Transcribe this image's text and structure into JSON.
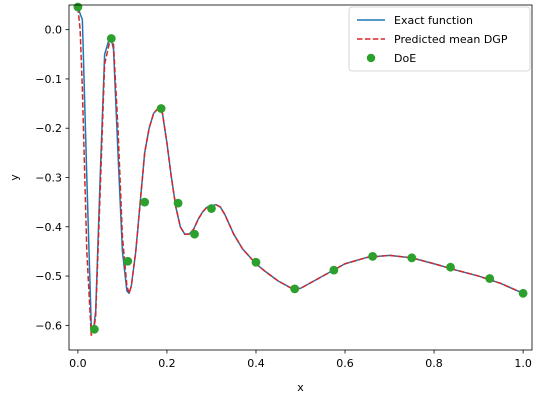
{
  "chart_data": {
    "type": "line",
    "xlabel": "x",
    "ylabel": "y",
    "xlim": [
      -0.02,
      1.02
    ],
    "ylim": [
      -0.65,
      0.05
    ],
    "xticks": [
      0.0,
      0.2,
      0.4,
      0.6,
      0.8,
      1.0
    ],
    "xtick_labels": [
      "0.0",
      "0.2",
      "0.4",
      "0.6",
      "0.8",
      "1.0"
    ],
    "yticks": [
      0.0,
      -0.1,
      -0.2,
      -0.3,
      -0.4,
      -0.5,
      -0.6
    ],
    "ytick_labels": [
      "0.0",
      "−0.1",
      "−0.2",
      "−0.3",
      "−0.4",
      "−0.5",
      "−0.6"
    ],
    "grid": false,
    "legend_position": "top-right",
    "colors": {
      "exact": "#1f77b4",
      "predicted": "#d62728",
      "doe": "#2ca02c"
    },
    "series": [
      {
        "name": "Exact function",
        "style": "solid",
        "x": [
          0.0,
          0.01,
          0.02,
          0.03,
          0.035,
          0.04,
          0.05,
          0.06,
          0.07,
          0.075,
          0.08,
          0.09,
          0.1,
          0.11,
          0.115,
          0.12,
          0.13,
          0.14,
          0.15,
          0.16,
          0.17,
          0.18,
          0.19,
          0.2,
          0.21,
          0.22,
          0.23,
          0.24,
          0.25,
          0.26,
          0.27,
          0.28,
          0.29,
          0.3,
          0.31,
          0.32,
          0.33,
          0.34,
          0.35,
          0.37,
          0.39,
          0.4,
          0.42,
          0.45,
          0.48,
          0.5,
          0.53,
          0.57,
          0.6,
          0.65,
          0.7,
          0.75,
          0.8,
          0.85,
          0.9,
          0.95,
          1.0
        ],
        "y": [
          0.045,
          0.02,
          -0.3,
          -0.6,
          -0.61,
          -0.57,
          -0.3,
          -0.05,
          -0.02,
          -0.02,
          -0.04,
          -0.25,
          -0.45,
          -0.53,
          -0.535,
          -0.52,
          -0.45,
          -0.35,
          -0.25,
          -0.2,
          -0.17,
          -0.16,
          -0.17,
          -0.23,
          -0.3,
          -0.36,
          -0.4,
          -0.415,
          -0.415,
          -0.405,
          -0.385,
          -0.37,
          -0.36,
          -0.358,
          -0.355,
          -0.36,
          -0.375,
          -0.395,
          -0.415,
          -0.445,
          -0.465,
          -0.475,
          -0.49,
          -0.51,
          -0.525,
          -0.525,
          -0.51,
          -0.49,
          -0.475,
          -0.462,
          -0.458,
          -0.463,
          -0.475,
          -0.488,
          -0.5,
          -0.515,
          -0.535
        ]
      },
      {
        "name": "Predicted mean DGP",
        "style": "dashed",
        "x": [
          0.0,
          0.005,
          0.01,
          0.02,
          0.03,
          0.035,
          0.04,
          0.05,
          0.06,
          0.07,
          0.075,
          0.08,
          0.09,
          0.1,
          0.11,
          0.115,
          0.12,
          0.13,
          0.14,
          0.15,
          0.16,
          0.17,
          0.18,
          0.19,
          0.2,
          0.21,
          0.22,
          0.23,
          0.24,
          0.25,
          0.26,
          0.27,
          0.28,
          0.29,
          0.3,
          0.31,
          0.32,
          0.33,
          0.34,
          0.35,
          0.37,
          0.39,
          0.4,
          0.42,
          0.45,
          0.48,
          0.5,
          0.53,
          0.57,
          0.6,
          0.65,
          0.7,
          0.75,
          0.8,
          0.85,
          0.9,
          0.95,
          1.0
        ],
        "y": [
          0.045,
          0.0,
          -0.12,
          -0.45,
          -0.62,
          -0.615,
          -0.58,
          -0.33,
          -0.07,
          -0.03,
          -0.018,
          -0.03,
          -0.2,
          -0.42,
          -0.52,
          -0.535,
          -0.52,
          -0.45,
          -0.35,
          -0.25,
          -0.2,
          -0.17,
          -0.16,
          -0.17,
          -0.23,
          -0.3,
          -0.36,
          -0.4,
          -0.415,
          -0.415,
          -0.405,
          -0.385,
          -0.37,
          -0.36,
          -0.358,
          -0.355,
          -0.36,
          -0.375,
          -0.395,
          -0.415,
          -0.445,
          -0.465,
          -0.475,
          -0.49,
          -0.51,
          -0.525,
          -0.525,
          -0.51,
          -0.49,
          -0.475,
          -0.462,
          -0.458,
          -0.463,
          -0.475,
          -0.488,
          -0.5,
          -0.515,
          -0.535
        ]
      },
      {
        "name": "DoE",
        "style": "markers",
        "x": [
          0.0,
          0.037,
          0.075,
          0.112,
          0.15,
          0.187,
          0.225,
          0.262,
          0.3,
          0.4,
          0.487,
          0.575,
          0.662,
          0.75,
          0.837,
          0.925,
          1.0
        ],
        "y": [
          0.046,
          -0.608,
          -0.018,
          -0.47,
          -0.35,
          -0.16,
          -0.352,
          -0.415,
          -0.363,
          -0.472,
          -0.526,
          -0.488,
          -0.46,
          -0.463,
          -0.482,
          -0.505,
          -0.535
        ]
      }
    ]
  }
}
